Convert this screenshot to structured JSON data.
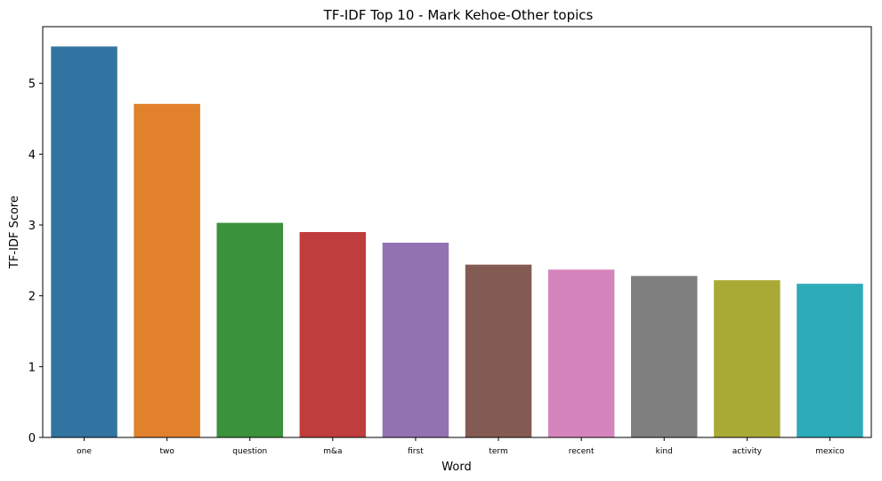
{
  "chart_data": {
    "type": "bar",
    "title": "TF-IDF Top 10 - Mark Kehoe-Other topics",
    "xlabel": "Word",
    "ylabel": "TF-IDF Score",
    "categories": [
      "one",
      "two",
      "question",
      "m&a",
      "first",
      "term",
      "recent",
      "kind",
      "activity",
      "mexico"
    ],
    "values": [
      5.52,
      4.71,
      3.03,
      2.9,
      2.75,
      2.44,
      2.37,
      2.28,
      2.22,
      2.17
    ],
    "colors": [
      "#3274a1",
      "#e1812c",
      "#3a923a",
      "#c03d3e",
      "#9372b2",
      "#845b53",
      "#d684bd",
      "#7f7f7f",
      "#a9aa35",
      "#2eabb8"
    ],
    "yticks": [
      0,
      1,
      2,
      3,
      4,
      5
    ],
    "ylim": [
      0,
      5.8
    ],
    "grid": false,
    "legend": "none"
  }
}
